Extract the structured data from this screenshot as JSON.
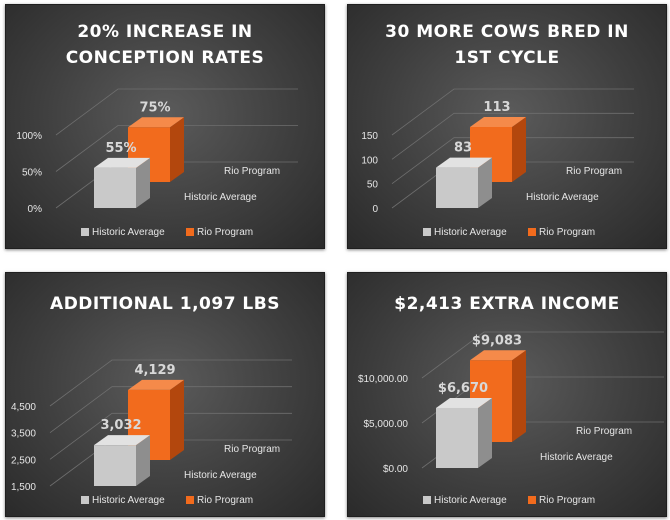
{
  "chart_data": [
    {
      "type": "bar",
      "title_lines": [
        "20% INCREASE IN",
        "CONCEPTION RATES"
      ],
      "categories": [
        "Historic Average",
        "Rio Program"
      ],
      "values": [
        55,
        75
      ],
      "value_labels": [
        "55%",
        "75%"
      ],
      "yticks": [
        "0%",
        "50%",
        "100%"
      ],
      "ytick_values": [
        0,
        50,
        100
      ],
      "ylim": [
        0,
        100
      ],
      "legend": [
        "Historic Average",
        "Rio Program"
      ],
      "legend_position": "bottom",
      "grid": true
    },
    {
      "type": "bar",
      "title_lines": [
        "30 MORE COWS BRED IN",
        "1ST CYCLE"
      ],
      "categories": [
        "Historic Average",
        "Rio Program"
      ],
      "values": [
        83,
        113
      ],
      "value_labels": [
        "83",
        "113"
      ],
      "yticks": [
        "0",
        "50",
        "100",
        "150"
      ],
      "ytick_values": [
        0,
        50,
        100,
        150
      ],
      "ylim": [
        0,
        150
      ],
      "legend": [
        "Historic Average",
        "Rio Program"
      ],
      "legend_position": "bottom",
      "grid": true
    },
    {
      "type": "bar",
      "title_lines": [
        "ADDITIONAL 1,097 LBS"
      ],
      "categories": [
        "Historic Average",
        "Rio Program"
      ],
      "values": [
        3032,
        4129
      ],
      "value_labels": [
        "3,032",
        "4,129"
      ],
      "yticks": [
        "1,500",
        "2,500",
        "3,500",
        "4,500"
      ],
      "ytick_values": [
        1500,
        2500,
        3500,
        4500
      ],
      "ylim": [
        1500,
        4500
      ],
      "legend": [
        "Historic Average",
        "Rio Program"
      ],
      "legend_position": "bottom",
      "grid": true
    },
    {
      "type": "bar",
      "title_lines": [
        "$2,413 EXTRA INCOME"
      ],
      "categories": [
        "Historic Average",
        "Rio Program"
      ],
      "values": [
        6670,
        9083
      ],
      "value_labels": [
        "$6,670",
        "$9,083"
      ],
      "yticks": [
        "$0.00",
        "$5,000.00",
        "$10,000.00"
      ],
      "ytick_values": [
        0,
        5000,
        10000
      ],
      "ylim": [
        0,
        10000
      ],
      "legend": [
        "Historic Average",
        "Rio Program"
      ],
      "legend_position": "bottom",
      "grid": true
    }
  ],
  "colors": {
    "historic_front": "#c9c9c9",
    "historic_side": "#8e8e8e",
    "historic_top": "#e2e2e2",
    "rio_front": "#f26b1d",
    "rio_side": "#b3470d",
    "rio_top": "#f58a4a"
  }
}
